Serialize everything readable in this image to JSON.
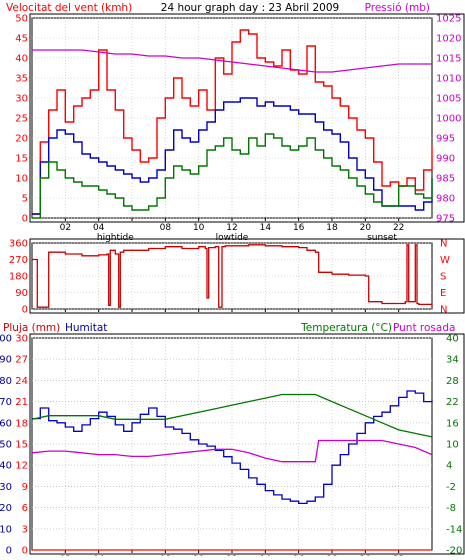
{
  "colors": {
    "background": "#ffffff",
    "plot_background": "#ffffff",
    "frame": "#000000",
    "red": "#ff0000",
    "dark_red": "#cc0000",
    "blue": "#0000cc",
    "green": "#007700",
    "magenta": "#cc00cc",
    "dark_blue": "#000099"
  },
  "chart_data": [
    {
      "type": "line",
      "title": "24 hour graph day : 23 Abril 2009",
      "ylabel": "Velocitat del vent (kmh)",
      "y2label": "Pressió (mb)",
      "ylim": [
        0,
        50
      ],
      "y2lim": [
        975,
        1025
      ],
      "yticks": [
        0,
        5,
        10,
        15,
        20,
        25,
        30,
        35,
        40,
        45,
        50
      ],
      "y2ticks": [
        975,
        980,
        985,
        990,
        995,
        1000,
        1005,
        1010,
        1015,
        1020,
        1025
      ],
      "xlim": [
        0,
        24
      ],
      "xticks": [
        2,
        4,
        6,
        8,
        10,
        12,
        14,
        16,
        18,
        20,
        22
      ],
      "xticklabels": [
        "02",
        "04",
        "",
        "08",
        "10",
        "12",
        "14",
        "16",
        "18",
        "20",
        "22"
      ],
      "annotations": [
        {
          "x": 5,
          "text": "hightide"
        },
        {
          "x": 12,
          "text": "lowtide"
        },
        {
          "x": 21,
          "text": "sunset"
        }
      ],
      "series": [
        {
          "color": "#ff0000",
          "axis": "left",
          "x": [
            0,
            0.5,
            1,
            1.5,
            2,
            2.5,
            3,
            3.5,
            4,
            4.5,
            5,
            5.5,
            6,
            6.5,
            7,
            7.5,
            8,
            8.5,
            9,
            9.5,
            10,
            10.5,
            11,
            11.5,
            12,
            12.5,
            13,
            13.5,
            14,
            14.5,
            15,
            15.5,
            16,
            16.5,
            17,
            17.5,
            18,
            18.5,
            19,
            19.5,
            20,
            20.5,
            21,
            21.5,
            22,
            22.5,
            23,
            23.5,
            24
          ],
          "values": [
            1,
            19,
            27,
            32,
            24,
            28,
            30,
            32,
            42,
            32,
            27,
            20,
            17,
            14,
            15,
            25,
            30,
            35,
            30,
            28,
            32,
            27,
            40,
            36,
            44,
            47,
            46,
            40,
            39,
            38,
            42,
            37,
            36,
            43,
            34,
            33,
            30,
            28,
            25,
            22,
            20,
            14,
            8,
            9,
            8,
            10,
            7,
            12,
            18
          ]
        },
        {
          "color": "#0000cc",
          "axis": "left",
          "x": [
            0,
            0.5,
            1,
            1.5,
            2,
            2.5,
            3,
            3.5,
            4,
            4.5,
            5,
            5.5,
            6,
            6.5,
            7,
            7.5,
            8,
            8.5,
            9,
            9.5,
            10,
            10.5,
            11,
            11.5,
            12,
            12.5,
            13,
            13.5,
            14,
            14.5,
            15,
            15.5,
            16,
            16.5,
            17,
            17.5,
            18,
            18.5,
            19,
            19.5,
            20,
            20.5,
            21,
            21.5,
            22,
            22.5,
            23,
            23.5,
            24
          ],
          "values": [
            1,
            14,
            20,
            22,
            21,
            19,
            16,
            15,
            14,
            13,
            12,
            11,
            10,
            9,
            10,
            12,
            17,
            22,
            20,
            19,
            22,
            24,
            27,
            29,
            29,
            30,
            30,
            28,
            29,
            28,
            28,
            27,
            26,
            26,
            24,
            22,
            21,
            19,
            15,
            12,
            10,
            7,
            3,
            3,
            3,
            3,
            2,
            4,
            10
          ]
        },
        {
          "color": "#007700",
          "axis": "left",
          "x": [
            0,
            0.5,
            1,
            1.5,
            2,
            2.5,
            3,
            3.5,
            4,
            4.5,
            5,
            5.5,
            6,
            6.5,
            7,
            7.5,
            8,
            8.5,
            9,
            9.5,
            10,
            10.5,
            11,
            11.5,
            12,
            12.5,
            13,
            13.5,
            14,
            14.5,
            15,
            15.5,
            16,
            16.5,
            17,
            17.5,
            18,
            18.5,
            19,
            19.5,
            20,
            20.5,
            21,
            21.5,
            22,
            22.5,
            23,
            23.5,
            24
          ],
          "values": [
            0,
            10,
            14,
            12,
            10,
            9,
            8,
            8,
            7,
            6,
            5,
            3,
            2,
            2,
            3,
            5,
            10,
            13,
            12,
            11,
            13,
            17,
            18,
            20,
            17,
            16,
            20,
            18,
            21,
            20,
            18,
            17,
            18,
            20,
            17,
            15,
            13,
            12,
            10,
            8,
            6,
            4,
            3,
            3,
            8,
            8,
            6,
            5,
            10
          ]
        },
        {
          "color": "#cc00cc",
          "axis": "right",
          "x": [
            0,
            1,
            2,
            3,
            4,
            5,
            6,
            7,
            8,
            9,
            10,
            11,
            12,
            13,
            14,
            15,
            16,
            17,
            18,
            19,
            20,
            21,
            22,
            23,
            24
          ],
          "values": [
            1017,
            1017,
            1017,
            1017,
            1016.5,
            1016,
            1016,
            1015.5,
            1015.5,
            1015,
            1015,
            1014.5,
            1014,
            1013.5,
            1013,
            1012.5,
            1012,
            1011.5,
            1011.5,
            1012,
            1012.5,
            1013,
            1013.5,
            1013.5,
            1013.5
          ]
        }
      ]
    },
    {
      "type": "line",
      "ylim": [
        0,
        360
      ],
      "yticks": [
        0,
        90,
        180,
        270,
        360
      ],
      "y2ticklabels": [
        "N",
        "E",
        "S",
        "W",
        "N"
      ],
      "xlim": [
        0,
        24
      ],
      "series": [
        {
          "color": "#cc0000",
          "axis": "left",
          "x": [
            0,
            0.3,
            0.32,
            1,
            2,
            3,
            4,
            4.5,
            4.6,
            4.7,
            5,
            5.2,
            5.3,
            5.5,
            6,
            7,
            8,
            9,
            10,
            10.4,
            10.5,
            10.6,
            11,
            11.2,
            11.4,
            11.6,
            12,
            13,
            14,
            15,
            16,
            16.5,
            17,
            17.2,
            18,
            19,
            20,
            20.2,
            21,
            22,
            22.4,
            22.5,
            22.6,
            23,
            23.1,
            23.2,
            24
          ],
          "values": [
            270,
            270,
            10,
            310,
            300,
            290,
            295,
            300,
            20,
            320,
            300,
            10,
            310,
            320,
            320,
            330,
            340,
            330,
            340,
            330,
            60,
            335,
            340,
            10,
            340,
            345,
            345,
            350,
            345,
            340,
            335,
            320,
            310,
            200,
            190,
            185,
            180,
            40,
            30,
            30,
            40,
            350,
            40,
            350,
            30,
            25,
            30
          ]
        }
      ]
    },
    {
      "type": "line",
      "ylabel": "Pluja (mm)",
      "ylabel2": "Humitat",
      "y2label": "Temperatura (°C)",
      "y2label2": "Punt rosada",
      "ylim": [
        0,
        30
      ],
      "yticks": [
        0,
        3,
        6,
        9,
        12,
        15,
        18,
        21,
        24,
        27,
        30
      ],
      "humidity_ticks": [
        0,
        10,
        20,
        30,
        40,
        50,
        60,
        70,
        80,
        90,
        100
      ],
      "y2lim": [
        -20,
        40
      ],
      "y2ticks": [
        -20,
        -14,
        -8,
        -2,
        4,
        10,
        16,
        22,
        28,
        34,
        40
      ],
      "xlim": [
        0,
        24
      ],
      "xticks": [
        2,
        4,
        6,
        8,
        10,
        12,
        14,
        16,
        18,
        20,
        22
      ],
      "xticklabels": [
        "02",
        "04",
        "",
        "08",
        "10",
        "12",
        "14",
        "16",
        "18",
        "20",
        "22"
      ],
      "annotations": [
        {
          "x": 5,
          "text": "hightide"
        },
        {
          "x": 12,
          "text": "lowtide"
        },
        {
          "x": 21,
          "text": "sunset"
        }
      ],
      "series": [
        {
          "color": "#0000cc",
          "axis": "humidity",
          "x": [
            0,
            0.5,
            1,
            1.5,
            2,
            2.5,
            3,
            3.5,
            4,
            4.5,
            5,
            5.5,
            6,
            6.5,
            7,
            7.5,
            8,
            8.5,
            9,
            9.5,
            10,
            10.5,
            11,
            11.5,
            12,
            12.5,
            13,
            13.5,
            14,
            14.5,
            15,
            15.5,
            16,
            16.5,
            17,
            17.5,
            18,
            18.5,
            19,
            19.5,
            20,
            20.5,
            21,
            21.5,
            22,
            22.5,
            23,
            23.5,
            24
          ],
          "values": [
            62,
            67,
            61,
            60,
            58,
            56,
            59,
            62,
            65,
            63,
            59,
            56,
            60,
            64,
            67,
            63,
            58,
            57,
            55,
            52,
            50,
            49,
            47,
            44,
            41,
            38,
            34,
            31,
            28,
            26,
            24,
            23,
            22,
            23,
            25,
            31,
            40,
            45,
            50,
            55,
            60,
            63,
            65,
            68,
            72,
            75,
            74,
            70,
            71
          ]
        },
        {
          "color": "#007700",
          "axis": "temperature",
          "x": [
            0,
            1,
            2,
            3,
            4,
            5,
            6,
            7,
            8,
            9,
            10,
            11,
            12,
            13,
            14,
            15,
            16,
            17,
            18,
            19,
            20,
            21,
            22,
            23,
            24
          ],
          "values": [
            17,
            18,
            18,
            18,
            18,
            17,
            17,
            17,
            17,
            18,
            19,
            20,
            21,
            22,
            23,
            24,
            24,
            24,
            22,
            20,
            18,
            16,
            14,
            13,
            12
          ]
        },
        {
          "color": "#cc00cc",
          "axis": "temperature",
          "x": [
            0,
            1,
            2,
            3,
            4,
            5,
            6,
            7,
            8,
            9,
            10,
            11,
            12,
            13,
            14,
            15,
            16,
            17,
            17.2,
            18,
            19,
            20,
            21,
            22,
            23,
            24
          ],
          "values": [
            7.5,
            8,
            8,
            7.5,
            7,
            7,
            6.5,
            6.5,
            7,
            7.5,
            8,
            8.5,
            8.5,
            7.5,
            6,
            5,
            5,
            5,
            11,
            11,
            11,
            11,
            11,
            10,
            9,
            7
          ]
        },
        {
          "color": "#ff0000",
          "axis": "left",
          "x": [
            0,
            24
          ],
          "values": [
            0,
            0
          ]
        }
      ]
    }
  ]
}
